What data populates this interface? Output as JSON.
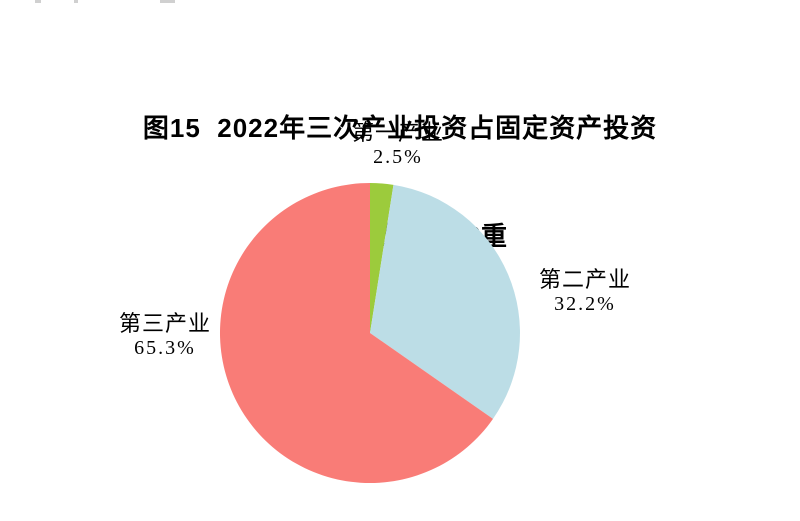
{
  "figure": {
    "title_line1": "图15  2022年三次产业投资占固定资产投资",
    "title_line2": "（不含农户）比重"
  },
  "chart_data": {
    "type": "pie",
    "title": "图15 2022年三次产业投资占固定资产投资（不含农户）比重",
    "unit": "%",
    "direction": "clockwise",
    "start_angle_deg_from_12_oclock": 0,
    "legend_position": "none",
    "labels": "outside",
    "background": "#FFFFFF",
    "text_color": "#000000",
    "slices": [
      {
        "slice_id": "primary-industry",
        "label": "第一产业",
        "value": 2.5,
        "value_label": "2.5%",
        "color": "#9CCB3C"
      },
      {
        "slice_id": "secondary-industry",
        "label": "第二产业",
        "value": 32.2,
        "value_label": "32.2%",
        "color": "#BCDDE6"
      },
      {
        "slice_id": "tertiary-industry",
        "label": "第三产业",
        "value": 65.3,
        "value_label": "65.3%",
        "color": "#F97C77"
      }
    ]
  }
}
